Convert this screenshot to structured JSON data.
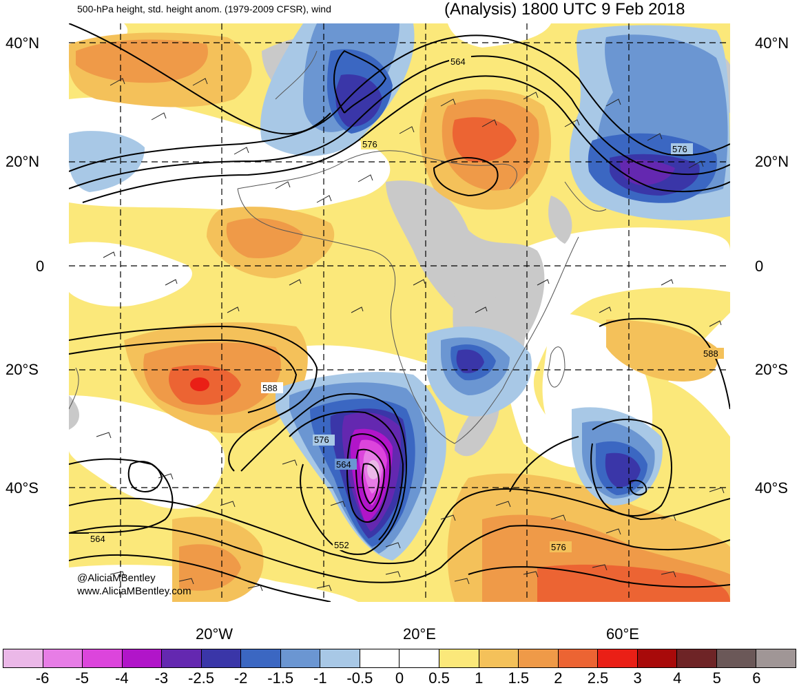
{
  "header": {
    "title_left": "500-hPa height, std. height anom. (1979-2009 CFSR), wind",
    "title_right": "(Analysis) 1800 UTC 9 Feb 2018"
  },
  "axes": {
    "lat_labels": [
      "40°N",
      "20°N",
      "0",
      "20°S",
      "40°S"
    ],
    "lon_labels": [
      "20°W",
      "20°E",
      "60°E"
    ]
  },
  "contour_labels": [
    "564",
    "576",
    "576",
    "576",
    "588",
    "588",
    "576",
    "564",
    "552",
    "564",
    "576"
  ],
  "credit": {
    "line1": "@AliciaMBentley",
    "line2": "www.AliciaMBentley.com"
  },
  "colorbar": {
    "labels": [
      "-6",
      "-5",
      "-4",
      "-3",
      "-2.5",
      "-2",
      "-1.5",
      "-1",
      "-0.5",
      "0",
      "0.5",
      "1",
      "1.5",
      "2",
      "2.5",
      "3",
      "4",
      "5",
      "6"
    ],
    "colors": [
      "#ebb8e8",
      "#e77de6",
      "#dc45dc",
      "#b115c9",
      "#6428b0",
      "#3a36a8",
      "#3b67c2",
      "#6b96d2",
      "#a8c8e6",
      "#ffffff",
      "#ffffff",
      "#fbe87a",
      "#f4c15a",
      "#ef9a48",
      "#ec6433",
      "#ea1f16",
      "#a80a0a",
      "#6e2426",
      "#6b5858",
      "#a09696"
    ]
  }
}
